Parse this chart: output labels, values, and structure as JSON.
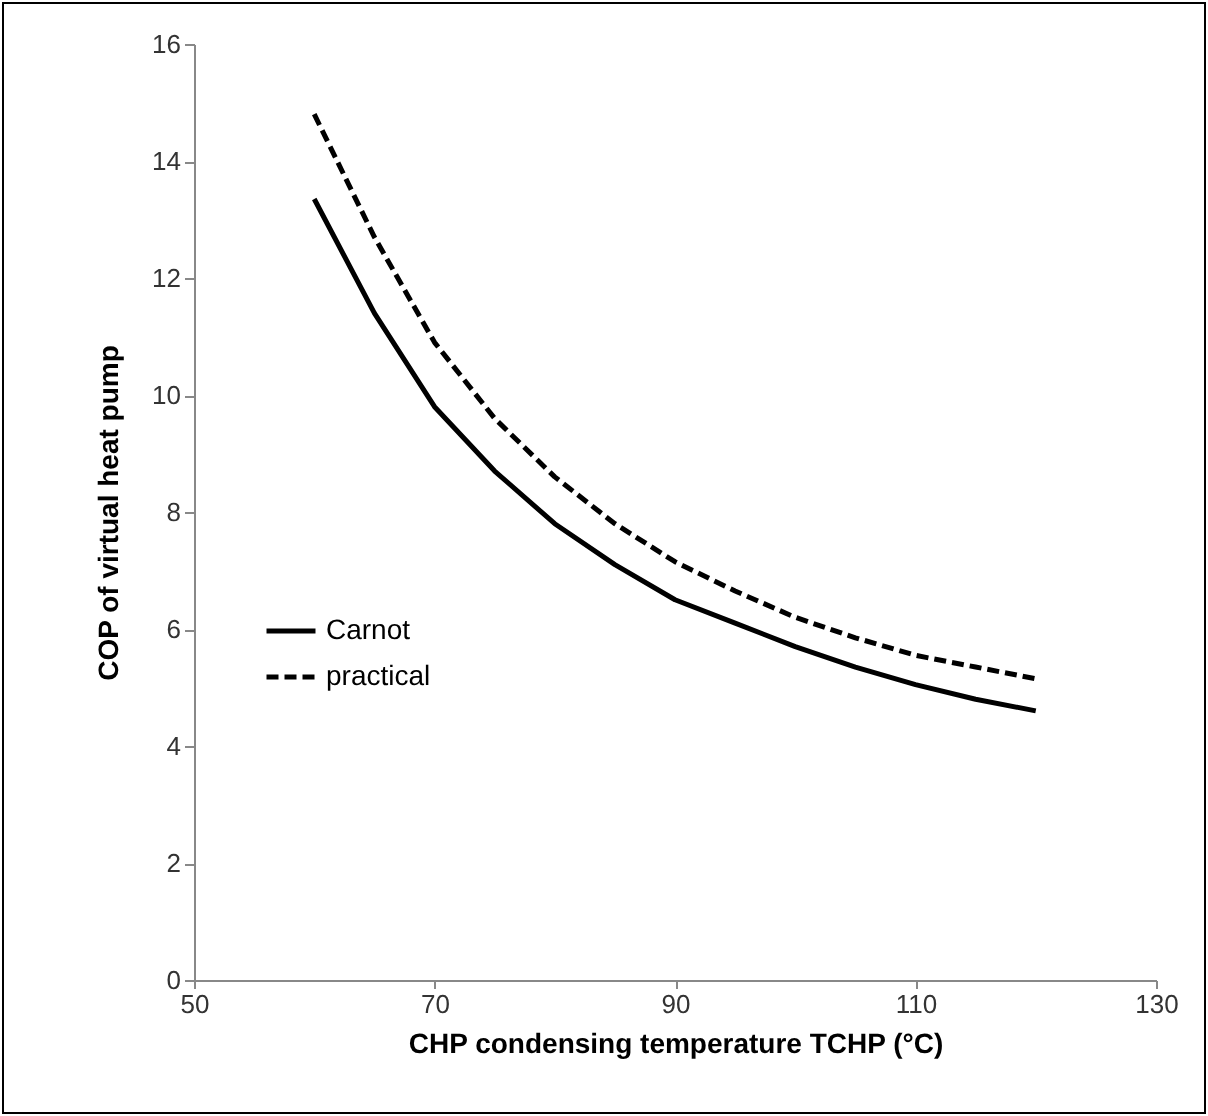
{
  "chart_data": {
    "type": "line",
    "xlabel": "CHP condensing temperature TCHP (°C)",
    "ylabel": "COP of virtual heat pump",
    "x": [
      60,
      65,
      70,
      75,
      80,
      85,
      90,
      95,
      100,
      105,
      110,
      115,
      120
    ],
    "series": [
      {
        "name": "Carnot",
        "color": "#000000",
        "line_style": "solid",
        "values": [
          13.35,
          11.4,
          9.8,
          8.7,
          7.8,
          7.1,
          6.5,
          6.1,
          5.7,
          5.35,
          5.05,
          4.8,
          4.6
        ]
      },
      {
        "name": "practical",
        "color": "#000000",
        "line_style": "dashed",
        "values": [
          14.8,
          12.7,
          10.9,
          9.6,
          8.6,
          7.8,
          7.15,
          6.65,
          6.2,
          5.85,
          5.55,
          5.35,
          5.15
        ]
      }
    ],
    "xlim": [
      50,
      130
    ],
    "xticks": [
      50,
      70,
      90,
      110,
      130
    ],
    "ylim": [
      0,
      16
    ],
    "yticks": [
      0,
      2,
      4,
      6,
      8,
      10,
      12,
      14,
      16
    ],
    "grid": false,
    "legend": "left",
    "marker": "none"
  }
}
